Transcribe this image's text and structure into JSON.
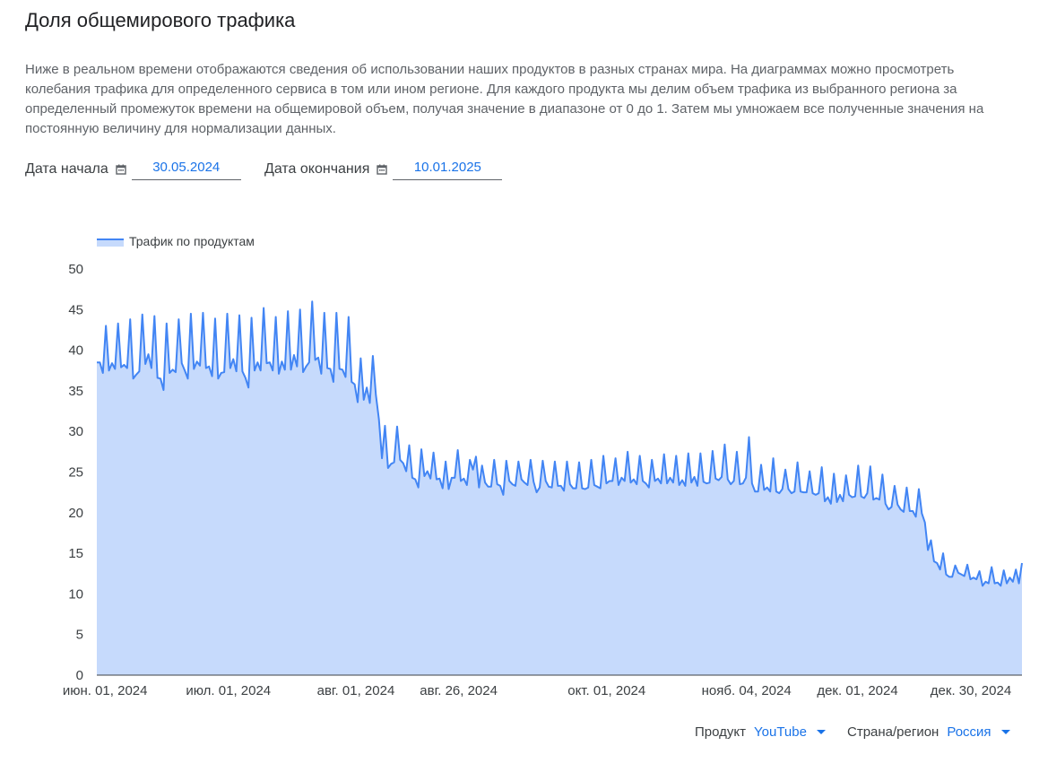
{
  "header": {
    "title": "Доля общемирового трафика",
    "description": "Ниже в реальном времени отображаются сведения об использовании наших продуктов в разных странах мира. На диаграммах можно просмотреть колебания трафика для определенного сервиса в том или ином регионе. Для каждого продукта мы делим объем трафика из выбранного региона за определенный промежуток времени на общемировой объем, получая значение в диапазоне от 0 до 1. Затем мы умножаем все полученные значения на постоянную величину для нормализации данных."
  },
  "filters": {
    "start_label": "Дата начала",
    "start_value": "30.05.2024",
    "end_label": "Дата окончания",
    "end_value": "10.01.2025",
    "calendar_icon": "calendar-icon"
  },
  "selectors": {
    "product_label": "Продукт",
    "product_value": "YouTube",
    "region_label": "Страна/регион",
    "region_value": "Россия"
  },
  "colors": {
    "line": "#4285f4",
    "fill": "#c6dafc",
    "accent": "#1a73e8"
  },
  "chart_data": {
    "type": "area",
    "legend": "Трафик по продуктам",
    "legend_position": "top-left",
    "y_ticks": [
      "0",
      "5",
      "10",
      "15",
      "20",
      "25",
      "30",
      "35",
      "40",
      "45",
      "50"
    ],
    "ylim": [
      0,
      50
    ],
    "x_range": [
      "30.05.2024",
      "10.01.2025"
    ],
    "x_ticks": [
      {
        "label": "июн. 01, 2024",
        "date": "2024-06-01"
      },
      {
        "label": "июл. 01, 2024",
        "date": "2024-07-01"
      },
      {
        "label": "авг. 01, 2024",
        "date": "2024-08-01"
      },
      {
        "label": "авг. 26, 2024",
        "date": "2024-08-26"
      },
      {
        "label": "окт. 01, 2024",
        "date": "2024-10-01"
      },
      {
        "label": "нояб. 04, 2024",
        "date": "2024-11-04"
      },
      {
        "label": "дек. 01, 2024",
        "date": "2024-12-01"
      },
      {
        "label": "дек. 30, 2024",
        "date": "2024-12-30"
      }
    ],
    "grid": false,
    "series": [
      {
        "name": "Трафик по продуктам",
        "x_start": "2024-05-30",
        "x_end": "2025-01-10",
        "values": [
          38.5,
          38.5,
          37.2,
          43.0,
          37.5,
          38.4,
          37.7,
          43.3,
          37.9,
          38.2,
          37.8,
          43.8,
          36.5,
          37.0,
          37.4,
          44.4,
          38.3,
          39.5,
          37.8,
          44.2,
          36.6,
          36.5,
          35.1,
          43.3,
          37.2,
          37.6,
          37.3,
          43.8,
          38.4,
          37.5,
          36.5,
          44.5,
          37.7,
          38.6,
          38.1,
          44.6,
          37.8,
          38.0,
          36.8,
          43.9,
          36.5,
          37.2,
          37.3,
          44.5,
          37.8,
          38.9,
          37.4,
          44.3,
          37.4,
          36.6,
          35.4,
          44.0,
          37.5,
          38.5,
          37.5,
          45.2,
          38.4,
          38.5,
          37.5,
          44.1,
          37.1,
          38.6,
          37.6,
          44.8,
          37.6,
          39.4,
          38.0,
          45.0,
          37.3,
          38.0,
          38.5,
          46.0,
          38.8,
          39.1,
          37.1,
          44.6,
          37.8,
          37.7,
          36.1,
          44.6,
          37.7,
          37.6,
          36.7,
          44.1,
          36.1,
          35.8,
          33.6,
          39.0,
          33.9,
          35.4,
          33.5,
          39.3,
          34.5,
          31.5,
          26.7,
          30.7,
          25.5,
          26.0,
          26.2,
          30.6,
          26.5,
          26.1,
          25.1,
          28.3,
          24.3,
          24.1,
          23.1,
          27.8,
          24.5,
          25.1,
          24.2,
          27.4,
          24.1,
          24.2,
          23.0,
          26.3,
          22.9,
          24.3,
          24.3,
          27.7,
          23.9,
          24.2,
          23.4,
          26.5,
          25.3,
          26.9,
          23.1,
          25.8,
          23.7,
          23.2,
          23.2,
          26.5,
          23.5,
          23.3,
          22.2,
          26.4,
          23.9,
          23.5,
          23.3,
          26.3,
          24.1,
          23.7,
          23.4,
          26.5,
          23.8,
          22.5,
          23.1,
          26.4,
          23.9,
          23.2,
          23.1,
          26.3,
          23.3,
          23.3,
          22.7,
          26.3,
          23.5,
          23.0,
          23.0,
          26.2,
          23.0,
          22.9,
          23.1,
          26.5,
          23.4,
          23.2,
          23.0,
          27.0,
          23.6,
          23.9,
          23.9,
          26.7,
          23.4,
          24.3,
          23.9,
          27.5,
          23.7,
          24.1,
          23.5,
          27.0,
          23.9,
          23.6,
          23.1,
          26.5,
          23.9,
          24.2,
          23.6,
          27.2,
          23.6,
          24.3,
          23.7,
          27.0,
          23.4,
          24.0,
          23.3,
          27.3,
          23.7,
          24.4,
          23.3,
          27.3,
          23.8,
          23.6,
          23.7,
          27.6,
          24.2,
          24.0,
          24.4,
          28.4,
          24.1,
          23.5,
          23.9,
          27.5,
          23.5,
          23.6,
          24.3,
          29.3,
          23.6,
          22.6,
          22.6,
          25.9,
          22.8,
          23.1,
          22.6,
          26.7,
          22.6,
          22.4,
          22.9,
          25.3,
          22.9,
          22.4,
          22.6,
          26.2,
          22.6,
          22.5,
          22.5,
          25.1,
          22.4,
          22.2,
          22.4,
          25.6,
          21.4,
          21.9,
          21.1,
          24.8,
          21.3,
          22.2,
          21.4,
          24.6,
          22.2,
          21.9,
          22.0,
          25.8,
          22.0,
          21.8,
          22.4,
          25.7,
          21.6,
          21.8,
          21.6,
          24.7,
          21.1,
          20.4,
          20.7,
          23.3,
          21.0,
          20.4,
          20.1,
          23.1,
          20.2,
          20.2,
          19.5,
          22.9,
          19.9,
          18.8,
          15.4,
          16.6,
          14.0,
          13.8,
          13.0,
          15.0,
          12.4,
          12.1,
          12.1,
          13.5,
          12.6,
          12.4,
          12.2,
          13.6,
          11.8,
          12.0,
          11.8,
          12.8,
          11.0,
          11.5,
          11.3,
          13.3,
          11.3,
          11.4,
          11.0,
          12.9,
          11.3,
          12.0,
          11.5,
          13.0,
          11.3,
          13.8
        ]
      }
    ]
  }
}
